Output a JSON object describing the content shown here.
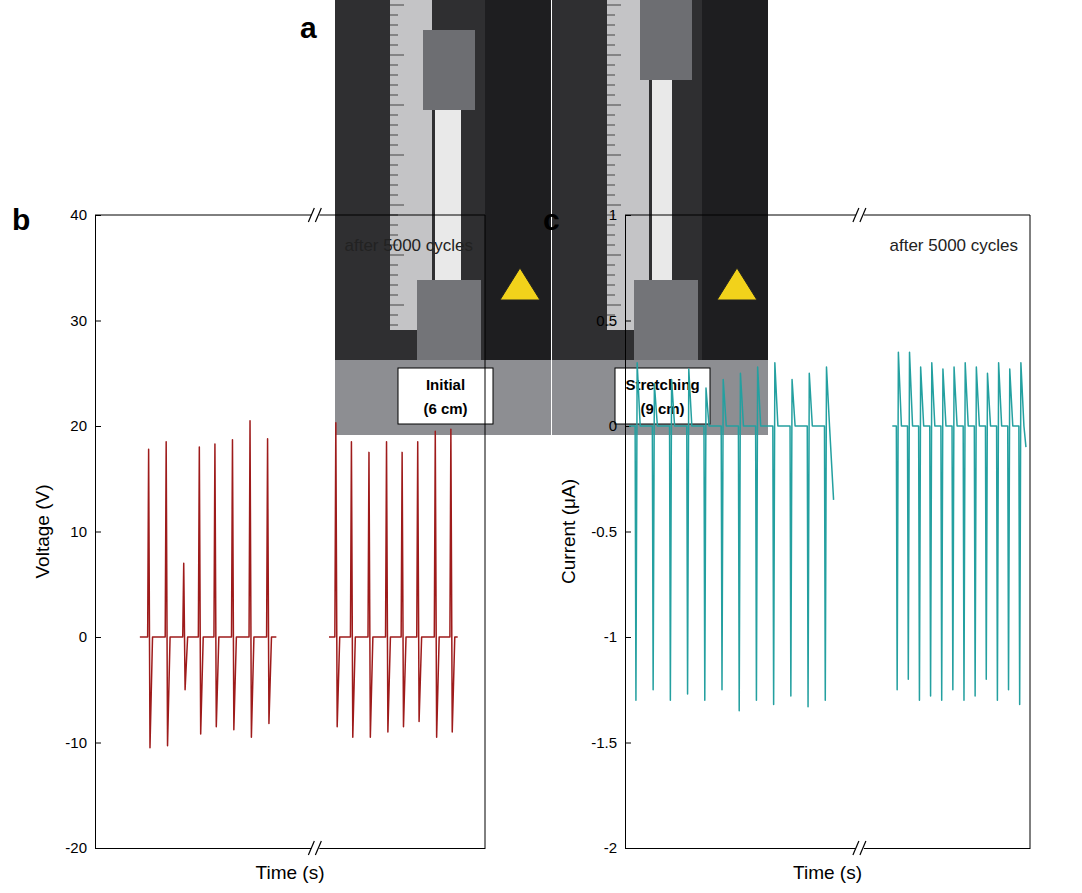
{
  "figure": {
    "letters": [
      "a",
      "b",
      "c"
    ],
    "photo_labels": [
      [
        "Initial",
        "(6 cm)"
      ],
      [
        "Stretching",
        "(9 cm)"
      ]
    ]
  },
  "chart_data": [
    {
      "type": "line",
      "color": "#9e1b1b",
      "y_label": "Voltage (V)",
      "x_label": "Time (s)",
      "annotations": [
        "after 5000 cycles"
      ],
      "xlim": [
        0,
        20
      ],
      "xticks": [],
      "ylim": [
        -20,
        40
      ],
      "yticks": [
        -20,
        -10,
        0,
        10,
        20,
        30,
        40
      ],
      "tick_labels": "y",
      "grid": false,
      "x": [
        2.3,
        2.7,
        2.75,
        2.82,
        2.95,
        3.6,
        3.65,
        3.72,
        3.85,
        4.5,
        4.55,
        4.62,
        4.75,
        5.3,
        5.35,
        5.42,
        5.55,
        6.1,
        6.15,
        6.22,
        6.35,
        7.0,
        7.05,
        7.12,
        7.25,
        7.9,
        7.95,
        8.02,
        8.15,
        8.8,
        8.85,
        8.92,
        9.05,
        9.3,
        11.3,
        12.0,
        12.3,
        12.35,
        12.42,
        12.55,
        13.1,
        13.15,
        13.22,
        13.35,
        14.0,
        14.05,
        14.12,
        14.25,
        14.9,
        14.95,
        15.02,
        15.15,
        15.7,
        15.75,
        15.82,
        15.95,
        16.5,
        16.55,
        16.62,
        16.75,
        17.4,
        17.45,
        17.52,
        17.65,
        18.2,
        18.25,
        18.32,
        18.45,
        18.6
      ],
      "values": [
        0,
        0,
        17.8,
        -10.5,
        0,
        0,
        18.5,
        -10.3,
        0,
        0,
        7.0,
        -5.0,
        0,
        0,
        18.0,
        -9.2,
        0,
        0,
        18.3,
        -8.5,
        0,
        0,
        18.7,
        -8.8,
        0,
        0,
        20.5,
        -9.5,
        0,
        0,
        18.8,
        -8.2,
        0,
        0,
        null,
        0,
        0,
        20.3,
        -8.5,
        0,
        0,
        18.5,
        -9.5,
        0,
        0,
        17.5,
        -9.5,
        0,
        0,
        18.5,
        -9.0,
        0,
        0,
        17.5,
        -8.5,
        0,
        0,
        18.5,
        -8.0,
        0,
        0,
        19.5,
        -9.5,
        0,
        0,
        19.7,
        -9.0,
        0,
        0
      ]
    },
    {
      "type": "line",
      "color": "#24a0a0",
      "y_label": "Current (μA)",
      "x_label": "Time (s)",
      "annotations": [
        "after 5000 cycles"
      ],
      "xlim": [
        0,
        20
      ],
      "xticks": [],
      "ylim": [
        -2,
        1
      ],
      "yticks": [
        -2,
        -1.5,
        -1,
        -0.5,
        0,
        0.5,
        1
      ],
      "tick_labels": "y",
      "grid": false,
      "x": [
        0.2,
        0.5,
        0.54,
        0.6,
        0.75,
        1.35,
        1.39,
        1.45,
        1.6,
        2.2,
        2.24,
        2.3,
        2.45,
        3.05,
        3.09,
        3.15,
        3.3,
        3.9,
        3.94,
        4.0,
        4.15,
        4.75,
        4.79,
        4.85,
        5.0,
        5.6,
        5.64,
        5.7,
        5.85,
        6.45,
        6.49,
        6.55,
        6.7,
        7.3,
        7.34,
        7.4,
        7.55,
        8.15,
        8.19,
        8.25,
        8.4,
        9.0,
        9.04,
        9.1,
        9.25,
        9.85,
        9.89,
        9.95,
        10.1,
        10.3,
        11.6,
        13.2,
        13.4,
        13.44,
        13.5,
        13.65,
        13.95,
        13.99,
        14.05,
        14.2,
        14.5,
        14.54,
        14.6,
        14.75,
        15.05,
        15.09,
        15.15,
        15.3,
        15.6,
        15.64,
        15.7,
        15.85,
        16.15,
        16.19,
        16.25,
        16.4,
        16.7,
        16.74,
        16.8,
        16.95,
        17.25,
        17.29,
        17.35,
        17.5,
        17.8,
        17.84,
        17.9,
        18.05,
        18.35,
        18.39,
        18.45,
        18.6,
        18.9,
        18.94,
        19.0,
        19.15,
        19.45,
        19.49,
        19.55,
        19.7,
        19.8
      ],
      "values": [
        0,
        0,
        -1.3,
        0.3,
        0,
        0,
        -1.25,
        0.2,
        0,
        0,
        -1.3,
        0.22,
        0,
        0,
        -1.27,
        0.27,
        0,
        0,
        -1.3,
        0.18,
        0,
        0,
        -1.25,
        0.22,
        0,
        0,
        -1.35,
        0.25,
        0,
        0,
        -1.3,
        0.28,
        0,
        0,
        -1.32,
        0.3,
        0,
        0,
        -1.28,
        0.22,
        0,
        0,
        -1.33,
        0.25,
        0,
        0,
        -1.3,
        0.28,
        0,
        -0.35,
        null,
        0,
        0,
        -1.25,
        0.35,
        0,
        0,
        -1.2,
        0.35,
        0,
        0,
        -1.3,
        0.28,
        0,
        0,
        -1.28,
        0.3,
        0,
        0,
        -1.3,
        0.27,
        0,
        0,
        -1.25,
        0.28,
        0,
        0,
        -1.3,
        0.3,
        0,
        0,
        -1.28,
        0.28,
        0,
        0,
        -1.2,
        0.25,
        0,
        0,
        -1.3,
        0.3,
        0,
        0,
        -1.25,
        0.27,
        0,
        0,
        -1.32,
        0.3,
        0,
        -0.1
      ]
    }
  ]
}
